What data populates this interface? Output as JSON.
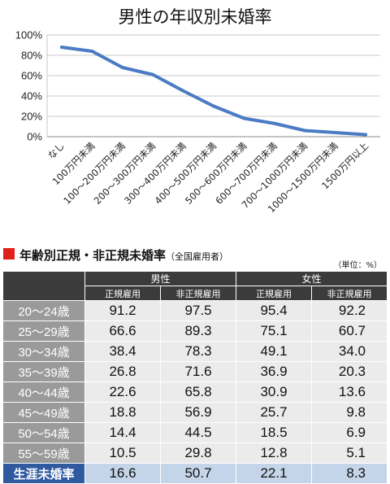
{
  "chart_data": {
    "type": "line",
    "title": "男性の年収別未婚率",
    "xlabel": "",
    "ylabel": "",
    "categories": [
      "なし",
      "100万円未満",
      "100～200万円未満",
      "200～300万円未満",
      "300～400万円未満",
      "400～500万円未満",
      "500～600万円未満",
      "600～700万円未満",
      "700～1000万円未満",
      "1000～1500万円未満",
      "1500万円以上"
    ],
    "series": [
      {
        "values": [
          88,
          84,
          68,
          61,
          45,
          30,
          18,
          13,
          6,
          4,
          2
        ]
      }
    ],
    "ylim": [
      0,
      100
    ],
    "yticks": [
      "100%",
      "80%",
      "60%",
      "40%",
      "20%",
      "0%"
    ],
    "grid": true,
    "line_color": "#4a7bc4"
  },
  "table": {
    "heading": "年齢別正規・非正規未婚率",
    "heading_sub": "（全国雇用者）",
    "unit": "（単位：%）",
    "groups": [
      "男性",
      "女性"
    ],
    "subheaders": [
      "正規雇用",
      "非正規雇用",
      "正規雇用",
      "非正規雇用"
    ],
    "rows": [
      {
        "label": "20～24歳",
        "values": [
          "91.2",
          "97.5",
          "95.4",
          "92.2"
        ]
      },
      {
        "label": "25～29歳",
        "values": [
          "66.6",
          "89.3",
          "75.1",
          "60.7"
        ]
      },
      {
        "label": "30～34歳",
        "values": [
          "38.4",
          "78.3",
          "49.1",
          "34.0"
        ]
      },
      {
        "label": "35～39歳",
        "values": [
          "26.8",
          "71.6",
          "36.9",
          "20.3"
        ]
      },
      {
        "label": "40～44歳",
        "values": [
          "22.6",
          "65.8",
          "30.9",
          "13.6"
        ]
      },
      {
        "label": "45～49歳",
        "values": [
          "18.8",
          "56.9",
          "25.7",
          "9.8"
        ]
      },
      {
        "label": "50～54歳",
        "values": [
          "14.4",
          "44.5",
          "18.5",
          "6.9"
        ]
      },
      {
        "label": "55～59歳",
        "values": [
          "10.5",
          "29.8",
          "12.8",
          "5.1"
        ]
      }
    ],
    "total": {
      "label": "生涯未婚率",
      "values": [
        "16.6",
        "50.7",
        "22.1",
        "8.3"
      ]
    }
  }
}
